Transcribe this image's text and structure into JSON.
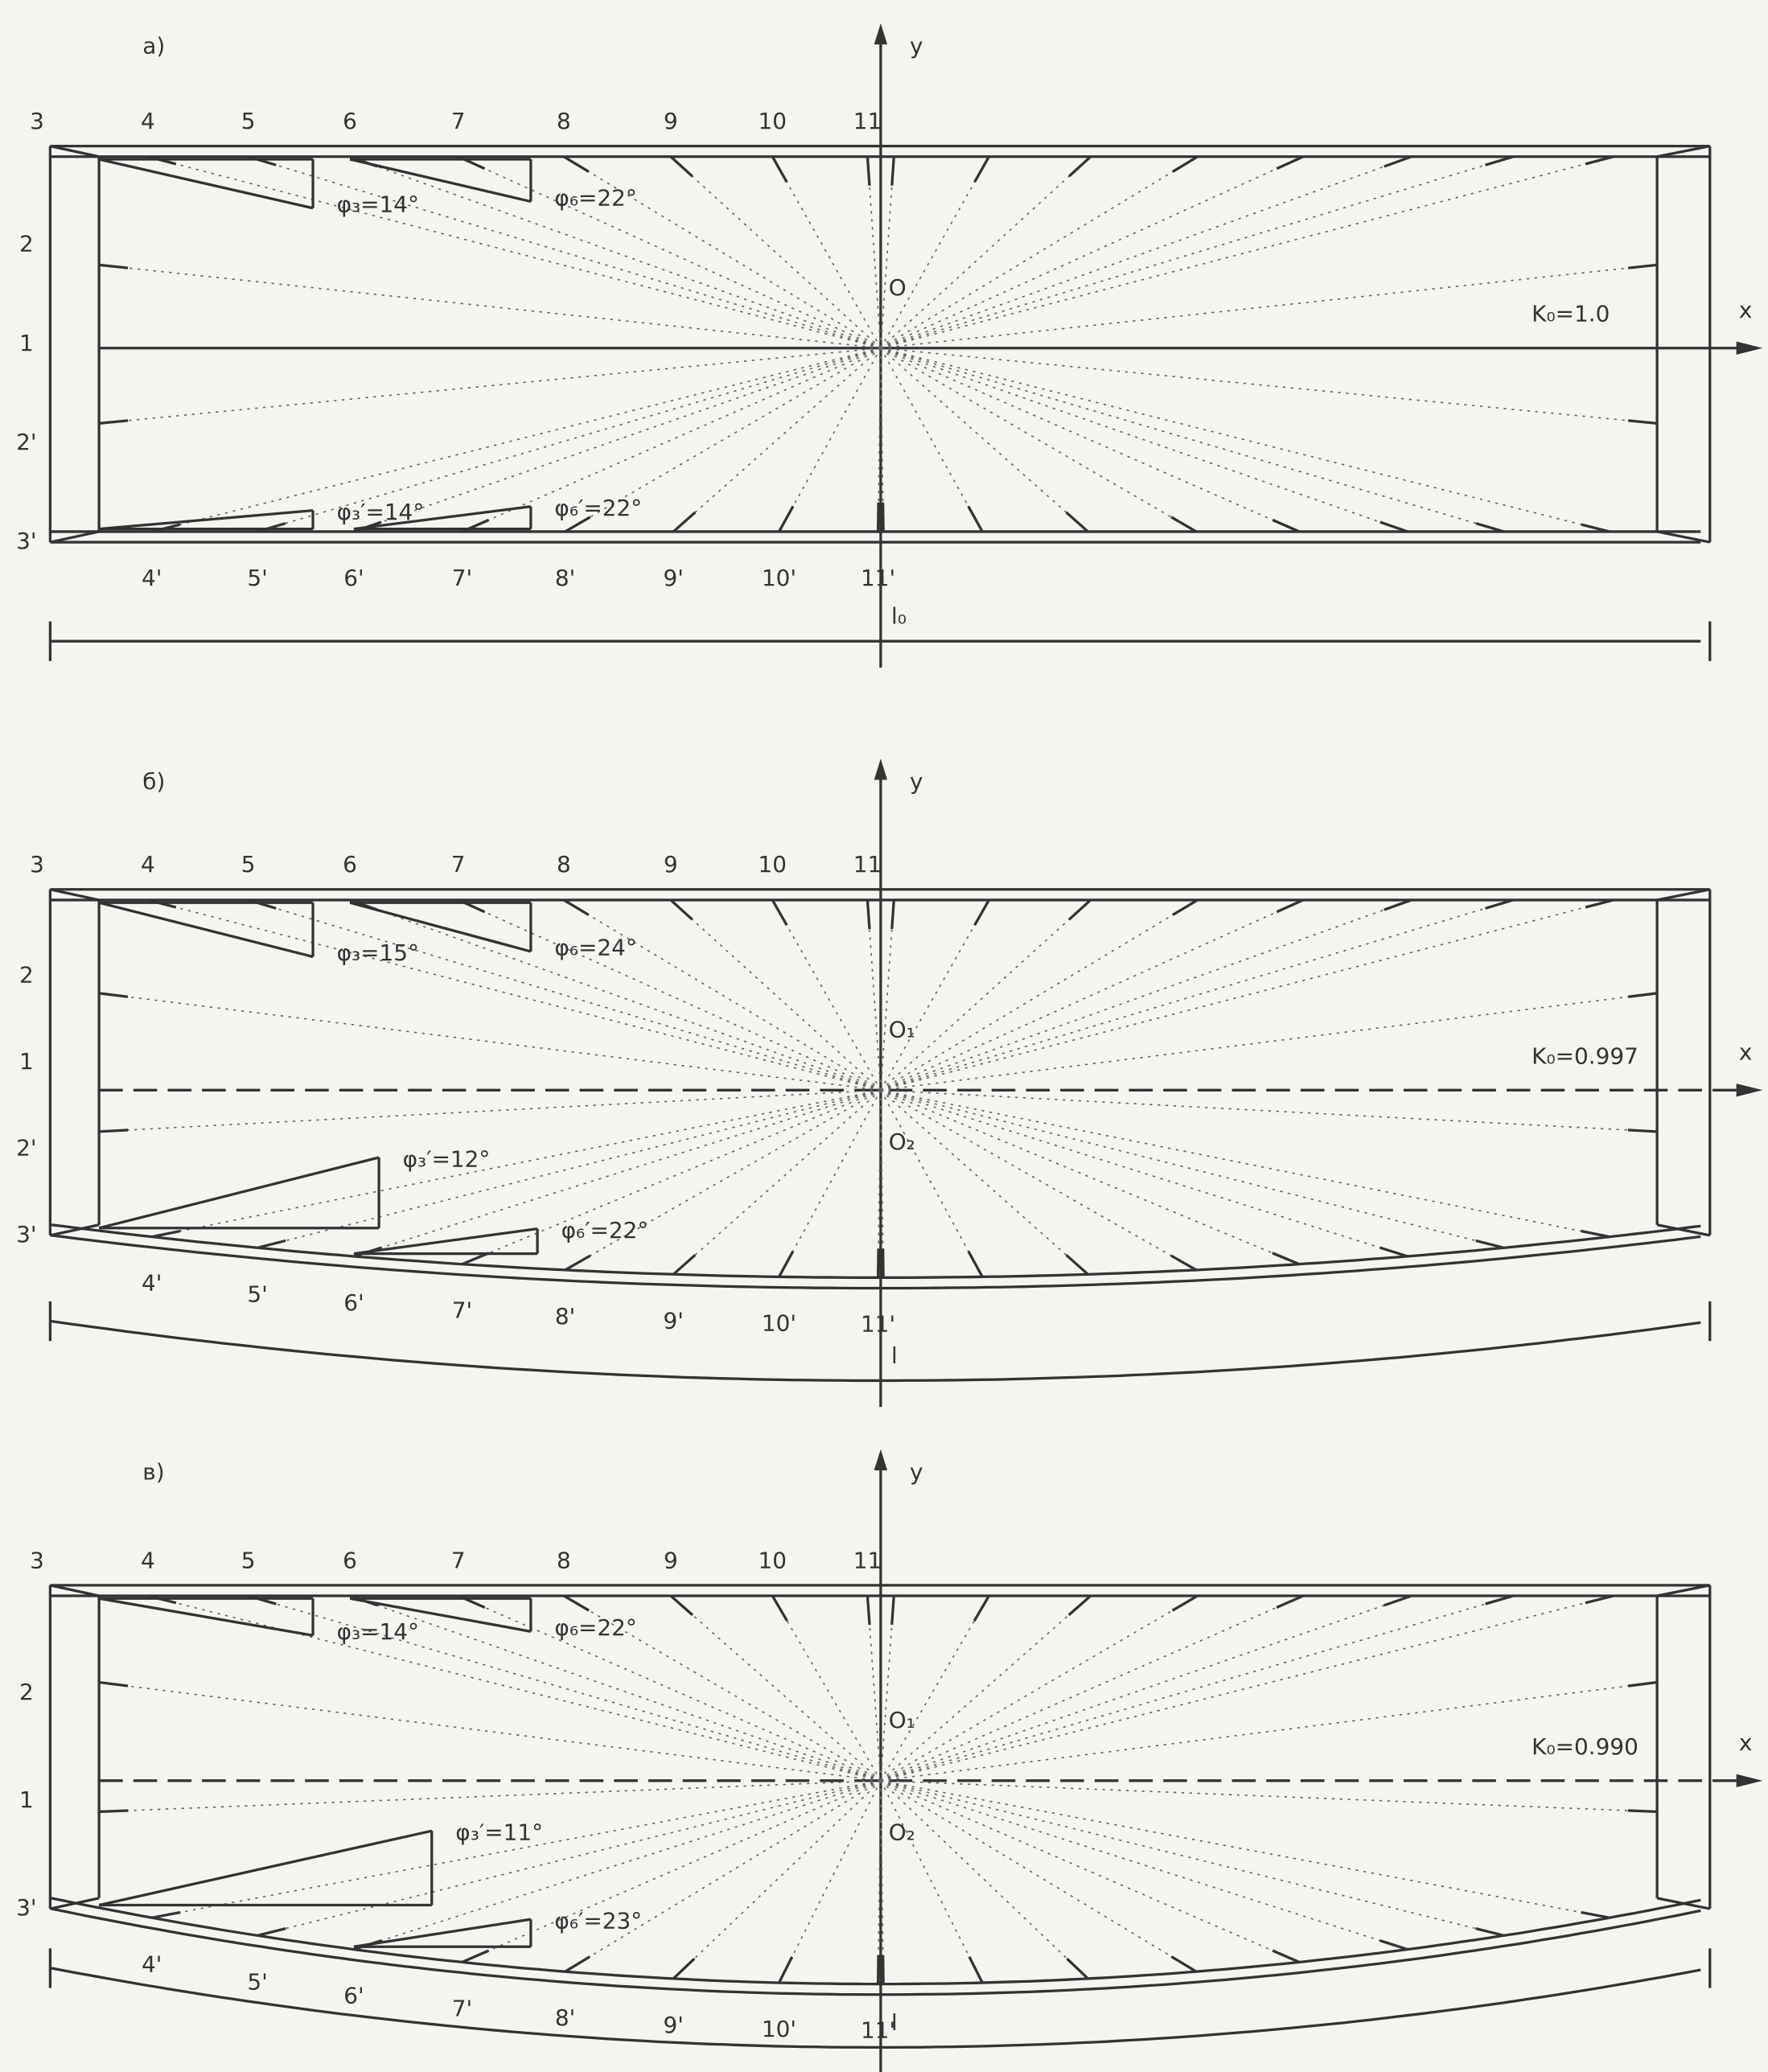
{
  "panels": [
    {
      "label": "а)",
      "y_axis": "y",
      "x_axis": "x",
      "top_points": [
        "3",
        "4",
        "5",
        "6",
        "7",
        "8",
        "9",
        "10",
        "11"
      ],
      "left_points": [
        "2",
        "1",
        "2'",
        "3'"
      ],
      "bottom_points": [
        "4'",
        "5'",
        "6'",
        "7'",
        "8'",
        "9'",
        "10'",
        "11'"
      ],
      "angles": [
        "φ₃=14°",
        "φ₆=22°",
        "φ₃′=14°",
        "φ₆′=22°"
      ],
      "k_label": "K₀=1.0",
      "origins": [
        "O"
      ],
      "length_label": "l₀"
    },
    {
      "label": "б)",
      "y_axis": "y",
      "x_axis": "x",
      "top_points": [
        "3",
        "4",
        "5",
        "6",
        "7",
        "8",
        "9",
        "10",
        "11"
      ],
      "left_points": [
        "2",
        "1",
        "2'",
        "3'"
      ],
      "bottom_points": [
        "4'",
        "5'",
        "6'",
        "7'",
        "8'",
        "9'",
        "10'",
        "11'"
      ],
      "angles": [
        "φ₃=15°",
        "φ₆=24°",
        "φ₃′=12°",
        "φ₆′=22°"
      ],
      "k_label": "K₀=0.997",
      "origins": [
        "O₁",
        "O₂"
      ],
      "length_label": "l"
    },
    {
      "label": "в)",
      "y_axis": "y",
      "x_axis": "x",
      "top_points": [
        "3",
        "4",
        "5",
        "6",
        "7",
        "8",
        "9",
        "10",
        "11"
      ],
      "left_points": [
        "2",
        "1",
        "3'"
      ],
      "bottom_points": [
        "4'",
        "5'",
        "6'",
        "7'",
        "8'",
        "9'",
        "10'",
        "11'"
      ],
      "angles": [
        "φ₃=14°",
        "φ₆=22°",
        "φ₃′=11°",
        "φ₆′=23°"
      ],
      "k_label": "K₀=0.990",
      "origins": [
        "O₁",
        "O₂"
      ],
      "length_label": "l"
    }
  ]
}
